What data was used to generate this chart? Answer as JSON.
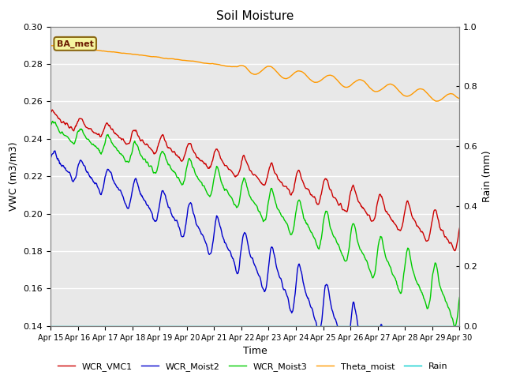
{
  "title": "Soil Moisture",
  "ylabel_left": "VWC (m3/m3)",
  "ylabel_right": "Rain (mm)",
  "xlabel": "Time",
  "ylim_left": [
    0.14,
    0.3
  ],
  "ylim_right": [
    0.0,
    1.0
  ],
  "background_color": "#e8e8e8",
  "annotation_text": "BA_met",
  "annotation_facecolor": "#f5f5a0",
  "annotation_edgecolor": "#8b6914",
  "x_tick_labels": [
    "Apr 15",
    "Apr 16",
    "Apr 17",
    "Apr 18",
    "Apr 19",
    "Apr 20",
    "Apr 21",
    "Apr 22",
    "Apr 23",
    "Apr 24",
    "Apr 25",
    "Apr 26",
    "Apr 27",
    "Apr 28",
    "Apr 29",
    "Apr 30"
  ],
  "legend_entries": [
    "WCR_VMC1",
    "WCR_Moist2",
    "WCR_Moist3",
    "Theta_moist",
    "Rain"
  ],
  "line_colors": [
    "#cc0000",
    "#0000cc",
    "#00cc00",
    "#ff9900",
    "#00cccc"
  ],
  "line_widths": [
    1.0,
    1.0,
    1.0,
    1.0,
    1.0
  ]
}
